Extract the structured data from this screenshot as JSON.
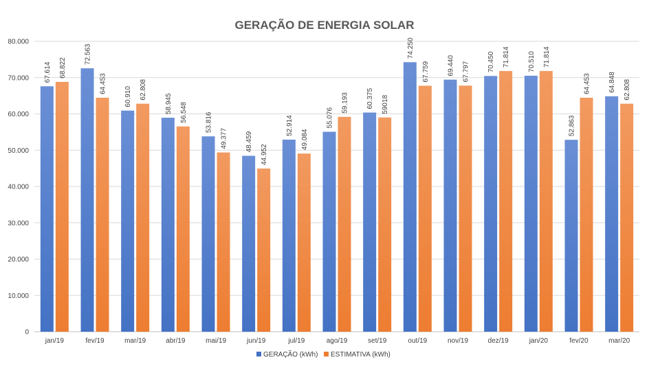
{
  "chart_data": {
    "type": "bar",
    "title": "GERAÇÃO DE ENERGIA SOLAR",
    "xlabel": "",
    "ylabel": "",
    "ylim": [
      0,
      80000
    ],
    "ytick_values": [
      0,
      10000,
      20000,
      30000,
      40000,
      50000,
      60000,
      70000,
      80000
    ],
    "ytick_labels": [
      "0",
      "10.000",
      "20.000",
      "30.000",
      "40.000",
      "50.000",
      "60.000",
      "70.000",
      "80.000"
    ],
    "grid": true,
    "legend_position": "bottom",
    "categories": [
      "jan/19",
      "fev/19",
      "mar/19",
      "abr/19",
      "mai/19",
      "jun/19",
      "jul/19",
      "ago/19",
      "set/19",
      "out/19",
      "nov/19",
      "dez/19",
      "jan/20",
      "fev/20",
      "mar/20"
    ],
    "series": [
      {
        "name": "GERAÇÃO (kWh)",
        "color": "#4472C4",
        "values": [
          67614,
          72563,
          60910,
          58945,
          53816,
          48459,
          52914,
          55076,
          60375,
          74250,
          69440,
          70450,
          70510,
          52863,
          64848
        ],
        "labels": [
          "67.614",
          "72.563",
          "60.910",
          "58.945",
          "53.816",
          "48.459",
          "52.914",
          "55.076",
          "60.375",
          "74.250",
          "69.440",
          "70.450",
          "70.510",
          "52.863",
          "64.848"
        ]
      },
      {
        "name": "ESTIMATIVA (kWh)",
        "color": "#ED7D31",
        "values": [
          68822,
          64453,
          62808,
          56548,
          49377,
          44952,
          49084,
          59193,
          59018,
          67759,
          67797,
          71814,
          71814,
          64453,
          62808
        ],
        "labels": [
          "68.822",
          "64.453",
          "62.808",
          "56.548",
          "49.377",
          "44.952",
          "49.084",
          "59.193",
          "59018",
          "67.759",
          "67.797",
          "71.814",
          "71.814",
          "64.453",
          "62.808"
        ]
      }
    ]
  }
}
